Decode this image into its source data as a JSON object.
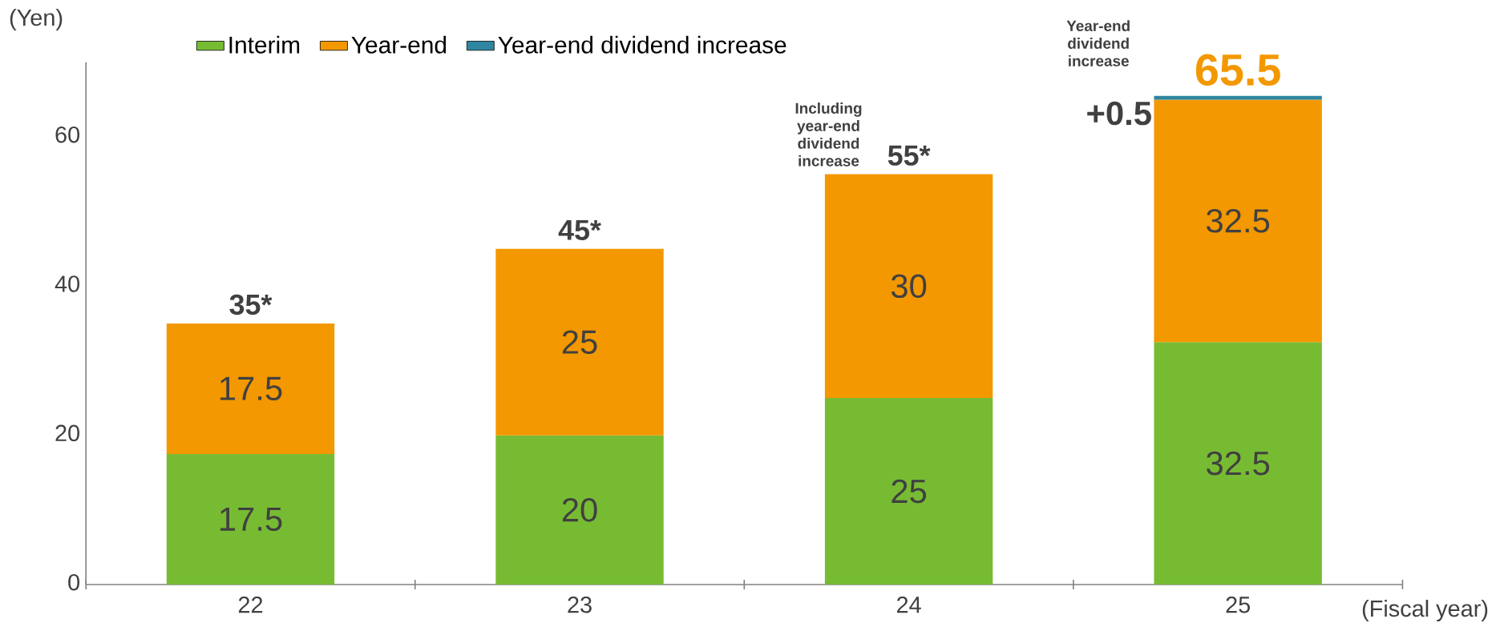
{
  "chart_data": {
    "type": "bar",
    "stacked": true,
    "categories": [
      "22",
      "23",
      "24",
      "25"
    ],
    "series": [
      {
        "name": "Interim",
        "color": "#77bb33",
        "values": [
          17.5,
          20,
          25,
          32.5
        ],
        "value_labels": [
          "17.5",
          "20",
          "25",
          "32.5"
        ]
      },
      {
        "name": "Year-end",
        "color": "#f39800",
        "values": [
          17.5,
          25,
          30,
          32.5
        ],
        "value_labels": [
          "17.5",
          "25",
          "30",
          "32.5"
        ]
      },
      {
        "name": "Year-end dividend increase",
        "color": "#2e86a0",
        "values": [
          null,
          null,
          null,
          0.5
        ]
      }
    ],
    "totals": [
      "35*",
      "45*",
      "55*",
      "65.5"
    ],
    "annotations": [
      "Including year-end dividend increase",
      "Year-end dividend increase",
      {
        "text": "+0.5",
        "x": "25",
        "y": 65.5
      }
    ],
    "xlabel": "(Fiscal year)",
    "ylabel": "(Yen)",
    "ylim": [
      0,
      70
    ],
    "yticks": [
      0,
      20,
      40,
      60
    ],
    "legend": "top",
    "grid": false
  }
}
